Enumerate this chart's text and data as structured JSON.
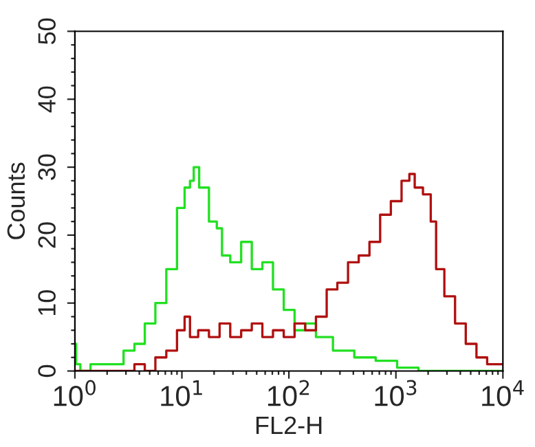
{
  "chart_data": {
    "type": "step",
    "xlabel": "FL2-H",
    "ylabel": "Counts",
    "log": "x",
    "xlim": [
      1,
      10000
    ],
    "ylim": [
      0,
      50
    ],
    "xticks": [
      {
        "value": 1,
        "label": "10$^{0}$"
      },
      {
        "value": 10,
        "label": "10$^{1}$"
      },
      {
        "value": 100,
        "label": "10$^{2}$"
      },
      {
        "value": 1000,
        "label": "10$^{3}$"
      },
      {
        "value": 10000,
        "label": "10$^{4}$"
      }
    ],
    "yticks": [
      0,
      10,
      20,
      30,
      40,
      50
    ],
    "grid": false,
    "legend": false,
    "series": [
      {
        "color": "#22e022",
        "x": [
          1,
          1.05,
          1.2,
          1.6,
          2.5,
          3.2,
          4,
          5,
          6.3,
          8,
          10,
          11.2,
          12.6,
          13.2,
          15.8,
          20,
          22.4,
          25,
          31.6,
          40,
          50,
          63,
          79,
          100,
          126,
          158,
          200,
          316,
          501,
          794,
          1259,
          1995,
          4000,
          10000
        ],
        "values": [
          4,
          1,
          0,
          1,
          1,
          3,
          4,
          7,
          10,
          15,
          24,
          27,
          28,
          30,
          27,
          22,
          21,
          17,
          16,
          19,
          15,
          16,
          12,
          9,
          6,
          7,
          5,
          3,
          2,
          1.5,
          0.5,
          0,
          0,
          0
        ]
      },
      {
        "color": "#b01010",
        "x": [
          1,
          3.2,
          4,
          5,
          6.3,
          8,
          10,
          11.2,
          12.6,
          15.8,
          20,
          25,
          31.6,
          40,
          50,
          63,
          79,
          100,
          126,
          158,
          200,
          251,
          316,
          398,
          501,
          631,
          794,
          1000,
          1259,
          1413,
          1585,
          1995,
          2239,
          2512,
          3162,
          3981,
          5012,
          6310,
          7943,
          10000
        ],
        "values": [
          0,
          0,
          1,
          0,
          2,
          3,
          6,
          8,
          5,
          6,
          5,
          7,
          5,
          6,
          7,
          5,
          6,
          5,
          7,
          6,
          8,
          12,
          13,
          16,
          17,
          19,
          23,
          25,
          28,
          29,
          27,
          26,
          22,
          15,
          11,
          7,
          4,
          2,
          1,
          1
        ]
      }
    ]
  }
}
